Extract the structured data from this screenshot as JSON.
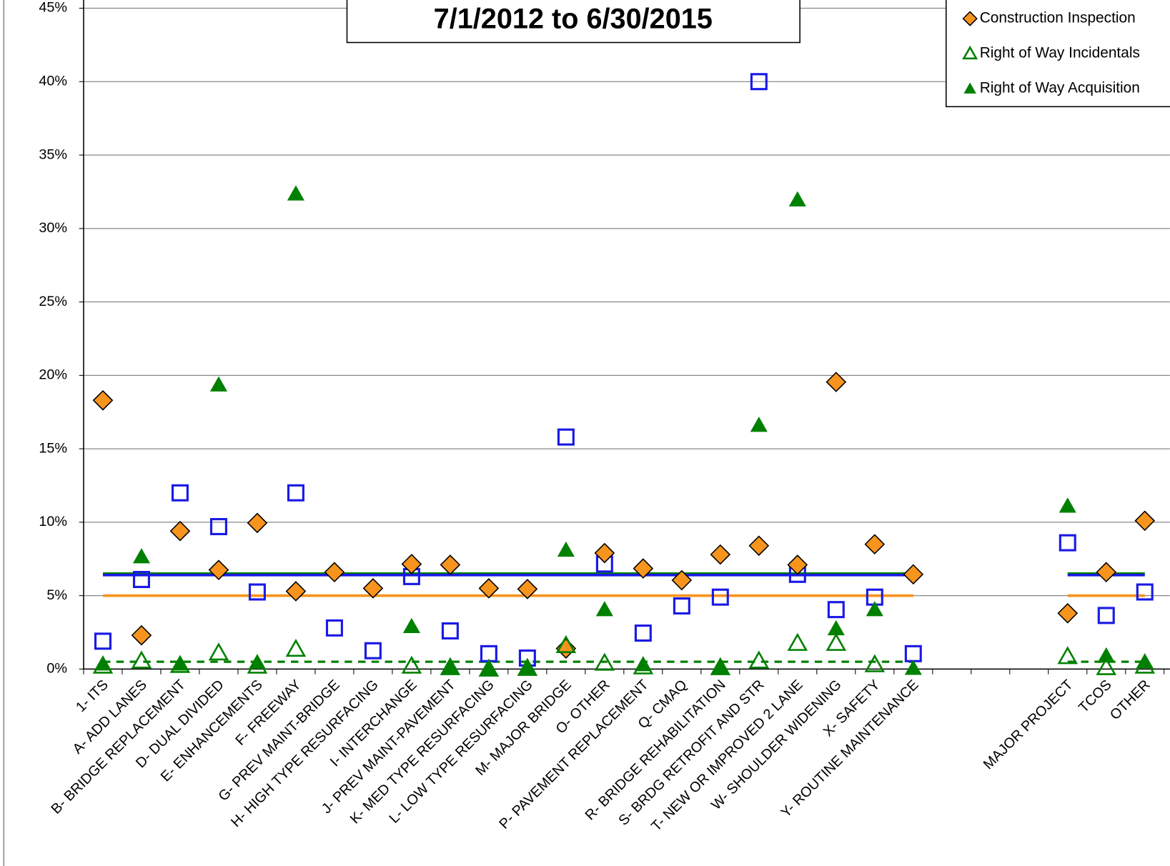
{
  "chart_data": {
    "type": "scatter",
    "title": "7/1/2012 to 6/30/2015",
    "categories": [
      "1- ITS",
      "A- ADD LANES",
      "B- BRIDGE REPLACEMENT",
      "D- DUAL DIVIDED",
      "E- ENHANCEMENTS",
      "F- FREEWAY",
      "G- PREV MAINT-BRIDGE",
      "H- HIGH TYPE RESURFACING",
      "I- INTERCHANGE",
      "J- PREV MAINT-PAVEMENT",
      "K- MED TYPE RESURFACING",
      "L- LOW TYPE RESURFACING",
      "M- MAJOR BRIDGE",
      "O- OTHER",
      "P- PAVEMENT REPLACEMENT",
      "Q- CMAQ",
      "R- BRIDGE REHABILITATION",
      "S- BRDG RETROFIT AND STR",
      "T- NEW OR IMPROVED 2 LANE",
      "W- SHOULDER WIDENING",
      "X- SAFETY",
      "Y- ROUTINE MAINTENANCE",
      null,
      null,
      null,
      "MAJOR PROJECT",
      "TCOS",
      "OTHER"
    ],
    "series": [
      {
        "color": "#1a1ae6",
        "marker": "square",
        "values": [
          1.9,
          6.1,
          12.0,
          9.7,
          5.25,
          12.0,
          2.8,
          1.25,
          6.3,
          2.6,
          1.05,
          0.75,
          15.8,
          7.15,
          2.45,
          4.3,
          4.9,
          40.0,
          6.45,
          4.05,
          4.9,
          1.05,
          null,
          null,
          null,
          8.6,
          3.65,
          5.25
        ]
      },
      {
        "name": "Construction Inspection",
        "color": "#f7941d",
        "marker": "diamond",
        "values": [
          18.3,
          2.3,
          9.4,
          6.75,
          9.95,
          5.3,
          6.6,
          5.5,
          7.15,
          7.1,
          5.5,
          5.45,
          1.4,
          7.9,
          6.85,
          6.05,
          7.8,
          8.4,
          7.1,
          19.55,
          8.5,
          6.45,
          null,
          null,
          null,
          3.8,
          6.6,
          10.1
        ]
      },
      {
        "name": "Right of Way Incidentals",
        "color": "#008000",
        "marker": "triangle-open",
        "values": [
          0.2,
          0.55,
          0.25,
          1.1,
          0.2,
          1.35,
          null,
          null,
          0.2,
          0.1,
          0,
          0.05,
          1.6,
          0.4,
          0.15,
          null,
          0.1,
          0.55,
          1.75,
          1.75,
          0.3,
          null,
          null,
          null,
          null,
          0.85,
          0.1,
          0.2
        ]
      },
      {
        "name": "Right of Way Acquisition",
        "color": "#008000",
        "marker": "triangle",
        "values": [
          0.35,
          7.65,
          0.35,
          19.35,
          0.45,
          32.35,
          null,
          null,
          2.9,
          0.1,
          0.05,
          0.05,
          8.1,
          4.05,
          0.3,
          null,
          0.15,
          16.6,
          31.95,
          2.75,
          4.05,
          0.05,
          null,
          null,
          null,
          11.1,
          0.9,
          0.5
        ]
      }
    ],
    "reference_lines": [
      {
        "value": 6.5,
        "color": "#008000",
        "dashed": false
      },
      {
        "value": 6.4,
        "color": "#1a1ae6",
        "dashed": false
      },
      {
        "value": 5,
        "color": "#f7941d",
        "dashed": false
      },
      {
        "value": 0.5,
        "color": "#008000",
        "dashed": true
      }
    ],
    "ylim": [
      0,
      45
    ],
    "yticks": [
      {
        "value": 0,
        "label": "0%"
      },
      {
        "value": 5,
        "label": "5%"
      },
      {
        "value": 10,
        "label": "10%"
      },
      {
        "value": 15,
        "label": "15%"
      },
      {
        "value": 20,
        "label": "20%"
      },
      {
        "value": 25,
        "label": "25%"
      },
      {
        "value": 30,
        "label": "30%"
      },
      {
        "value": 35,
        "label": "35%"
      },
      {
        "value": 40,
        "label": "40%"
      },
      {
        "value": 45,
        "label": "45%"
      }
    ],
    "grid": true,
    "legend": "upper right"
  }
}
